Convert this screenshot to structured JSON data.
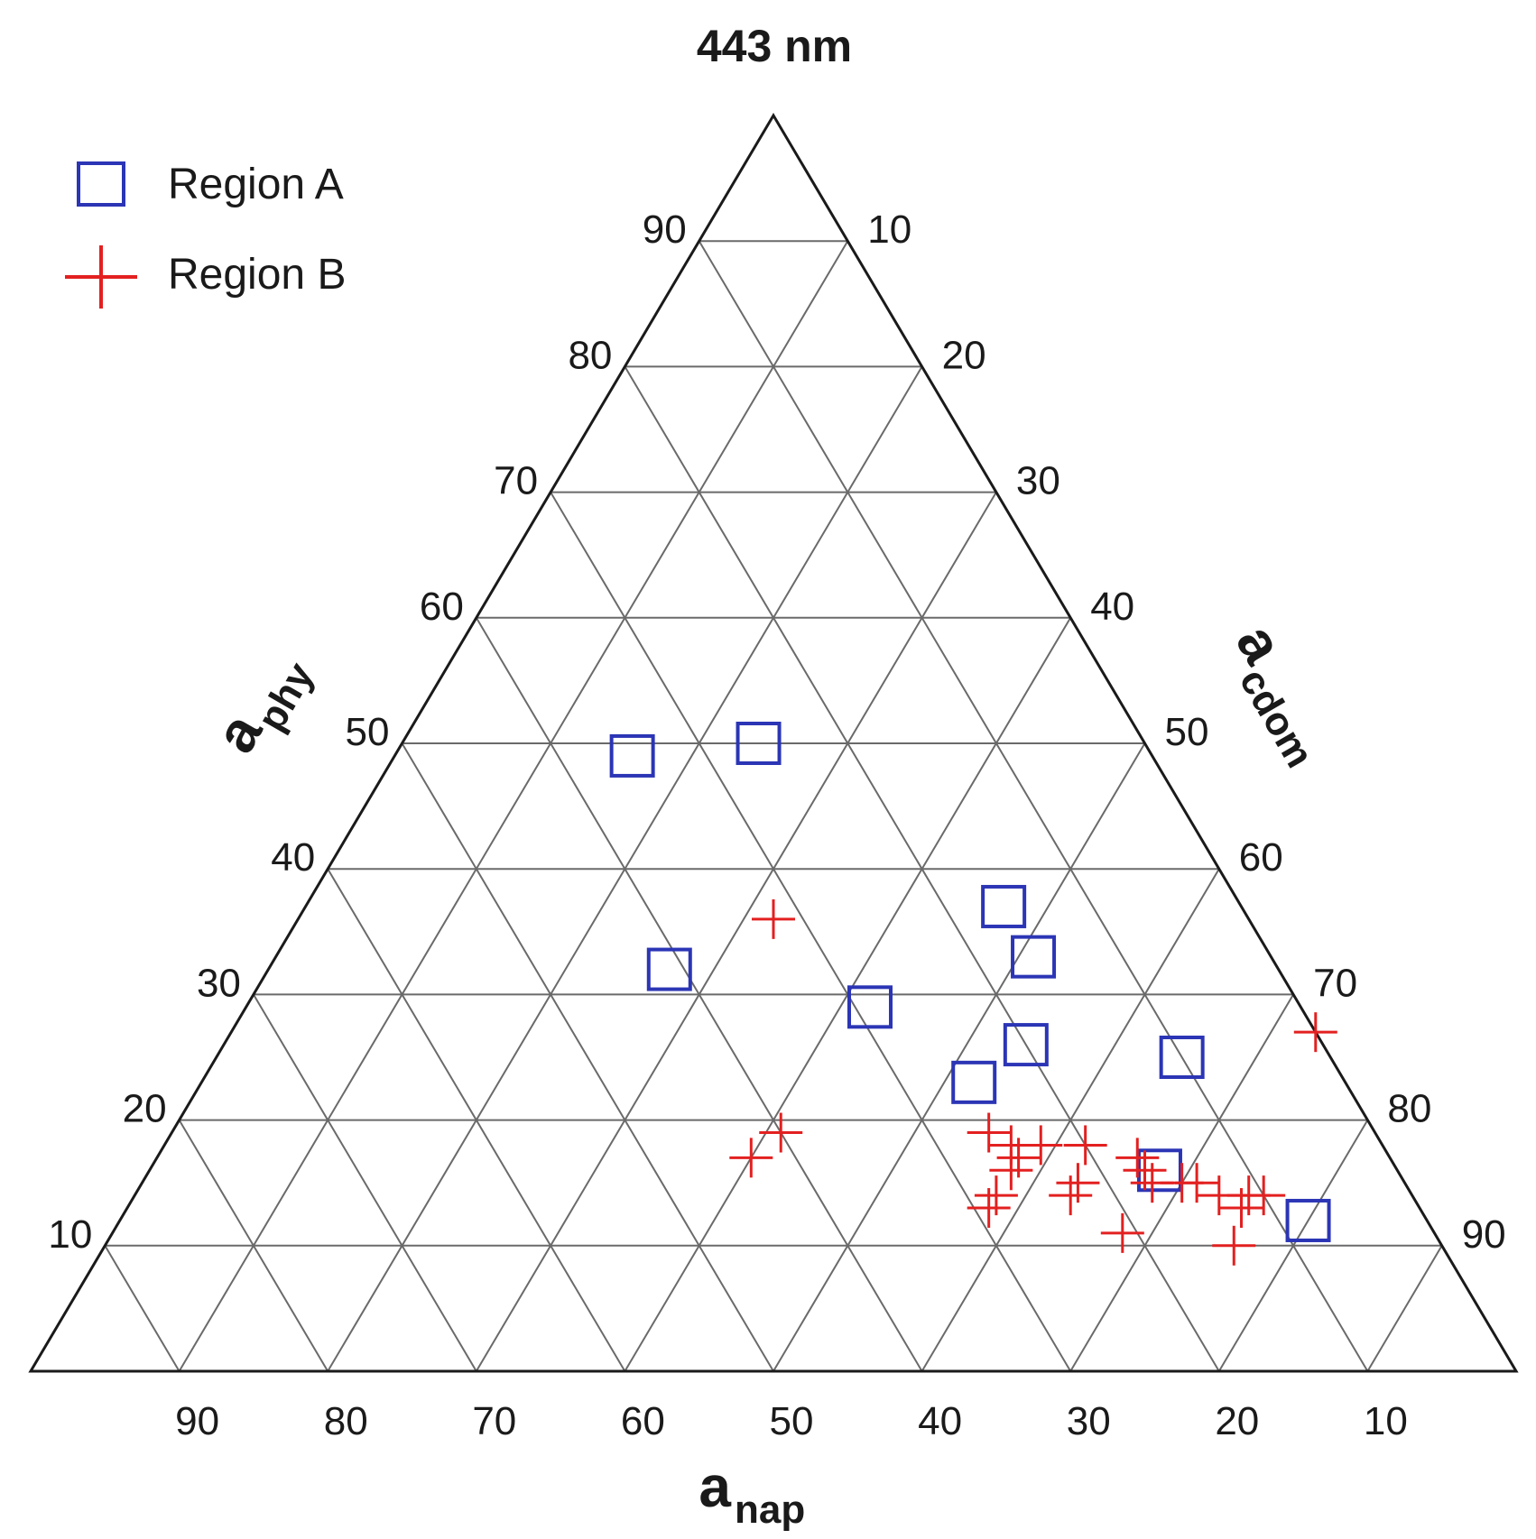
{
  "chart_data": {
    "type": "scatter",
    "subtype": "ternary",
    "title": "443 nm",
    "axes": {
      "a": {
        "main": "a",
        "sub": "phy",
        "ticks": [
          "10",
          "20",
          "30",
          "40",
          "50",
          "60",
          "70",
          "80",
          "90"
        ]
      },
      "b": {
        "main": "a",
        "sub": "nap",
        "ticks": [
          "90",
          "80",
          "70",
          "60",
          "50",
          "40",
          "30",
          "20",
          "10"
        ]
      },
      "c": {
        "main": "a",
        "sub": "cdom",
        "ticks": [
          "10",
          "20",
          "30",
          "40",
          "50",
          "60",
          "70",
          "80",
          "90"
        ]
      }
    },
    "grid": true,
    "grid_step": 10,
    "legend_position": "top-left",
    "series": [
      {
        "name": "Region A",
        "marker": "square",
        "color": "#2b35b5",
        "points": [
          {
            "phy": 49,
            "nap": 35,
            "cdom": 16
          },
          {
            "phy": 50,
            "nap": 26,
            "cdom": 24
          },
          {
            "phy": 37,
            "nap": 16,
            "cdom": 47
          },
          {
            "phy": 33,
            "nap": 16,
            "cdom": 51
          },
          {
            "phy": 32,
            "nap": 41,
            "cdom": 27
          },
          {
            "phy": 29,
            "nap": 29,
            "cdom": 42
          },
          {
            "phy": 26,
            "nap": 20,
            "cdom": 54
          },
          {
            "phy": 23,
            "nap": 25,
            "cdom": 52
          },
          {
            "phy": 25,
            "nap": 10,
            "cdom": 65
          },
          {
            "phy": 16,
            "nap": 16,
            "cdom": 68
          },
          {
            "phy": 12,
            "nap": 8,
            "cdom": 80
          }
        ]
      },
      {
        "name": "Region B",
        "marker": "plus",
        "color": "#e32020",
        "points": [
          {
            "phy": 36,
            "nap": 32,
            "cdom": 32
          },
          {
            "phy": 27,
            "nap": 0,
            "cdom": 73
          },
          {
            "phy": 19,
            "nap": 40,
            "cdom": 41
          },
          {
            "phy": 17,
            "nap": 43,
            "cdom": 40
          },
          {
            "phy": 19,
            "nap": 26,
            "cdom": 55
          },
          {
            "phy": 18,
            "nap": 25,
            "cdom": 57
          },
          {
            "phy": 18,
            "nap": 23,
            "cdom": 59
          },
          {
            "phy": 17,
            "nap": 25,
            "cdom": 58
          },
          {
            "phy": 16,
            "nap": 26,
            "cdom": 58
          },
          {
            "phy": 14,
            "nap": 28,
            "cdom": 58
          },
          {
            "phy": 13,
            "nap": 29,
            "cdom": 58
          },
          {
            "phy": 18,
            "nap": 20,
            "cdom": 62
          },
          {
            "phy": 15,
            "nap": 22,
            "cdom": 63
          },
          {
            "phy": 14,
            "nap": 23,
            "cdom": 63
          },
          {
            "phy": 17,
            "nap": 17,
            "cdom": 66
          },
          {
            "phy": 16,
            "nap": 17,
            "cdom": 67
          },
          {
            "phy": 15,
            "nap": 17,
            "cdom": 68
          },
          {
            "phy": 11,
            "nap": 21,
            "cdom": 68
          },
          {
            "phy": 15,
            "nap": 15,
            "cdom": 70
          },
          {
            "phy": 15,
            "nap": 14,
            "cdom": 71
          },
          {
            "phy": 14,
            "nap": 13,
            "cdom": 73
          },
          {
            "phy": 13,
            "nap": 12,
            "cdom": 75
          },
          {
            "phy": 14,
            "nap": 11,
            "cdom": 75
          },
          {
            "phy": 14,
            "nap": 10,
            "cdom": 76
          },
          {
            "phy": 10,
            "nap": 14,
            "cdom": 76
          }
        ]
      }
    ]
  }
}
